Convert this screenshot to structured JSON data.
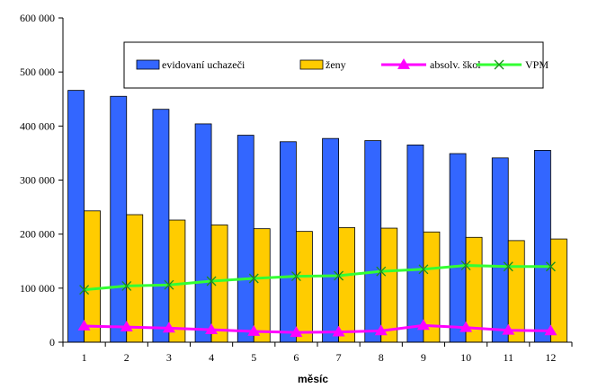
{
  "chart_data": {
    "type": "bar",
    "categories": [
      "1",
      "2",
      "3",
      "4",
      "5",
      "6",
      "7",
      "8",
      "9",
      "10",
      "11",
      "12"
    ],
    "xlabel": "měsíc",
    "ylabel": "",
    "ylim": [
      0,
      600000
    ],
    "yticks": [
      0,
      100000,
      200000,
      300000,
      400000,
      500000,
      600000
    ],
    "ytick_labels": [
      "0",
      "100 000",
      "200 000",
      "300 000",
      "400 000",
      "500 000",
      "600 000"
    ],
    "grid": false,
    "legend_position": "top-right (inside plot)",
    "series": [
      {
        "name": "evidovaní uchazeči",
        "kind": "bar",
        "color": "#3366ff",
        "values": [
          466000,
          455000,
          431000,
          404000,
          383000,
          371000,
          377000,
          373000,
          365000,
          349000,
          341000,
          355000
        ]
      },
      {
        "name": "ženy",
        "kind": "bar",
        "color": "#ffcc00",
        "values": [
          243000,
          236000,
          226000,
          217000,
          210000,
          205000,
          212000,
          211000,
          204000,
          194000,
          188000,
          191000
        ]
      },
      {
        "name": "absolv. škol",
        "kind": "line",
        "marker": "triangle",
        "color": "#ff00ff",
        "values": [
          30000,
          28000,
          26000,
          23000,
          20000,
          18000,
          19000,
          21000,
          31000,
          27000,
          22000,
          21000
        ]
      },
      {
        "name": "VPM",
        "kind": "line",
        "marker": "x",
        "color": "#33ff33",
        "values": [
          97000,
          104000,
          106000,
          113000,
          118000,
          122000,
          123000,
          131000,
          135000,
          142000,
          140000,
          140000
        ]
      }
    ]
  }
}
